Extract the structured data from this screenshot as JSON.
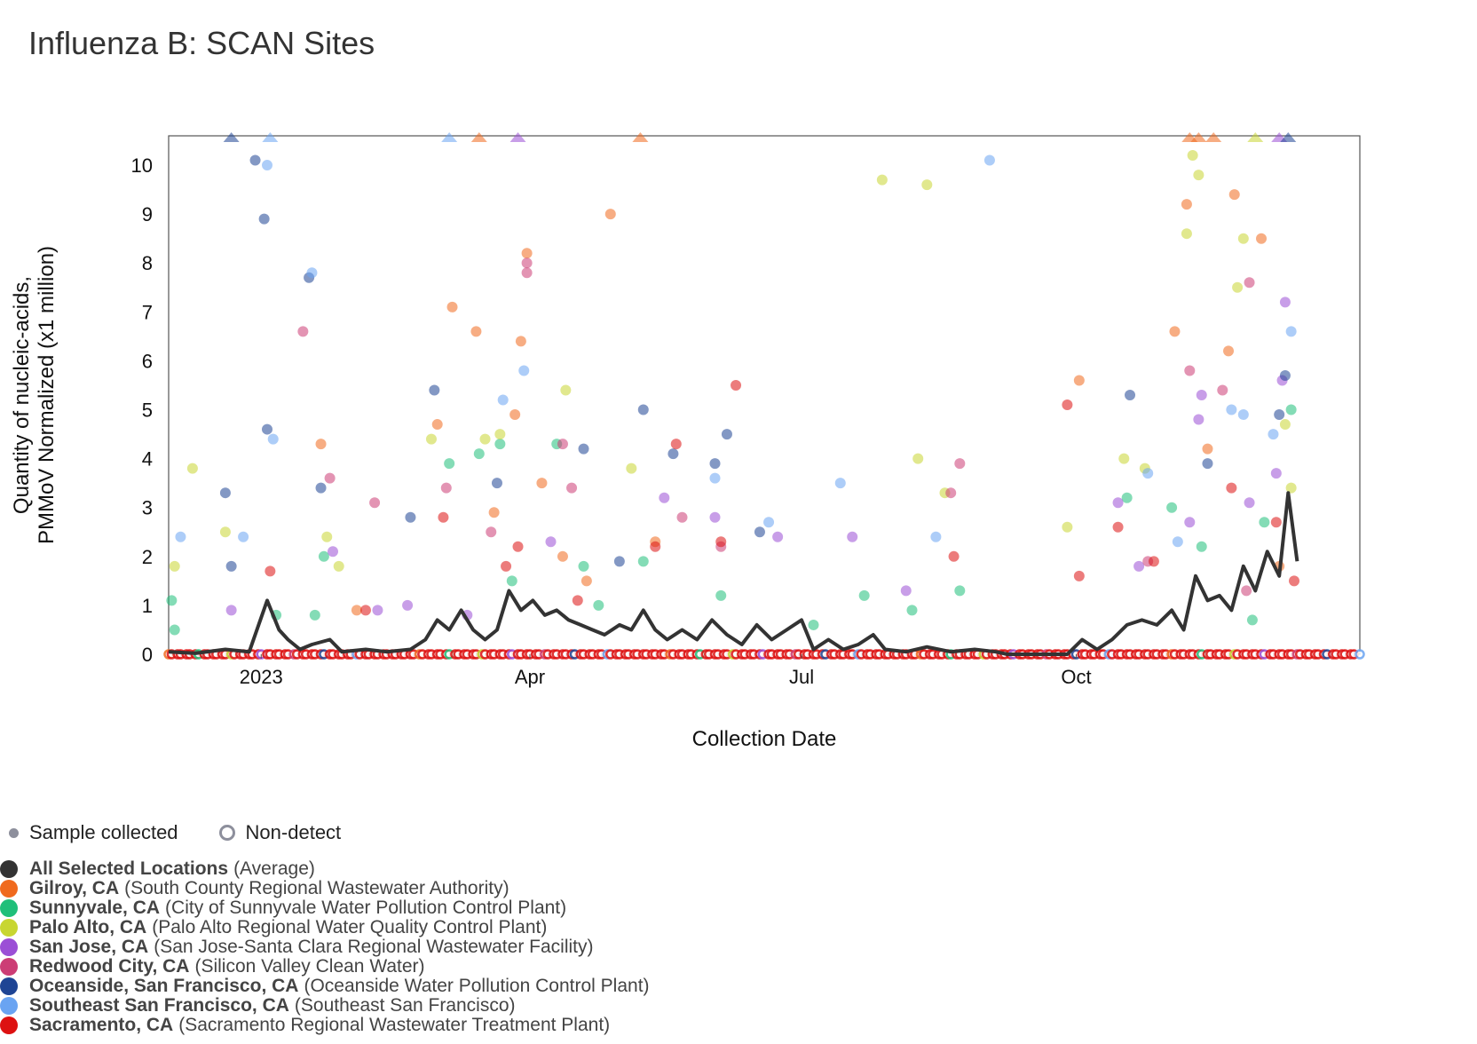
{
  "page": {
    "title": "Influenza B: SCAN Sites"
  },
  "legend": {
    "sample_label": "Sample collected",
    "nondetect_label": "Non-detect",
    "locations": [
      {
        "name": "All Selected Locations",
        "desc": "(Average)",
        "color": "#333333"
      },
      {
        "name": "Gilroy, CA",
        "desc": "(South County Regional Wastewater Authority)",
        "color": "#f06a1e"
      },
      {
        "name": "Sunnyvale, CA",
        "desc": "(City of Sunnyvale Water Pollution Control Plant)",
        "color": "#1fbf7a"
      },
      {
        "name": "Palo Alto, CA",
        "desc": "(Palo Alto Regional Water Quality Control Plant)",
        "color": "#c8d632"
      },
      {
        "name": "San Jose, CA",
        "desc": "(San Jose-Santa Clara Regional Wastewater Facility)",
        "color": "#9b4fd6"
      },
      {
        "name": "Redwood City, CA",
        "desc": "(Silicon Valley Clean Water)",
        "color": "#cc3d75"
      },
      {
        "name": "Oceanside, San Francisco, CA",
        "desc": "(Oceanside Water Pollution Control Plant)",
        "color": "#1e4494"
      },
      {
        "name": "Southeast San Francisco, CA",
        "desc": "(Southeast San Francisco)",
        "color": "#6aa4f2"
      },
      {
        "name": "Sacramento, CA",
        "desc": "(Sacramento Regional Wastewater Treatment Plant)",
        "color": "#dd1111"
      }
    ]
  },
  "chart_data": {
    "type": "scatter",
    "title": "Influenza B: SCAN Sites",
    "xlabel": "Collection Date",
    "ylabel": "Quantity of nucleic-acids, PMMoV Normalized (x1 million)",
    "x_range": [
      "2022-12-01",
      "2024-01-04"
    ],
    "ylim": [
      0,
      10.6
    ],
    "y_ticks": [
      0,
      1,
      2,
      3,
      4,
      5,
      6,
      7,
      8,
      9,
      10
    ],
    "x_ticks": [
      {
        "date": "2023-01-01",
        "label": "2023"
      },
      {
        "date": "2023-04-01",
        "label": "Apr"
      },
      {
        "date": "2023-07-01",
        "label": "Jul"
      },
      {
        "date": "2023-10-01",
        "label": "Oct"
      }
    ],
    "grid": false,
    "legend_position": "bottom-left",
    "average_line": {
      "name": "All Selected Locations",
      "points": [
        [
          "2022-12-01",
          0.05
        ],
        [
          "2022-12-10",
          0.02
        ],
        [
          "2022-12-20",
          0.1
        ],
        [
          "2022-12-28",
          0.05
        ],
        [
          "2023-01-03",
          1.1
        ],
        [
          "2023-01-07",
          0.5
        ],
        [
          "2023-01-10",
          0.3
        ],
        [
          "2023-01-14",
          0.1
        ],
        [
          "2023-01-18",
          0.2
        ],
        [
          "2023-01-24",
          0.3
        ],
        [
          "2023-01-28",
          0.05
        ],
        [
          "2023-02-05",
          0.1
        ],
        [
          "2023-02-12",
          0.05
        ],
        [
          "2023-02-20",
          0.1
        ],
        [
          "2023-02-25",
          0.3
        ],
        [
          "2023-03-01",
          0.7
        ],
        [
          "2023-03-05",
          0.5
        ],
        [
          "2023-03-09",
          0.9
        ],
        [
          "2023-03-13",
          0.5
        ],
        [
          "2023-03-17",
          0.3
        ],
        [
          "2023-03-21",
          0.5
        ],
        [
          "2023-03-25",
          1.3
        ],
        [
          "2023-03-29",
          0.9
        ],
        [
          "2023-04-02",
          1.1
        ],
        [
          "2023-04-06",
          0.8
        ],
        [
          "2023-04-10",
          0.9
        ],
        [
          "2023-04-14",
          0.7
        ],
        [
          "2023-04-18",
          0.6
        ],
        [
          "2023-04-22",
          0.5
        ],
        [
          "2023-04-26",
          0.4
        ],
        [
          "2023-05-01",
          0.6
        ],
        [
          "2023-05-05",
          0.5
        ],
        [
          "2023-05-09",
          0.9
        ],
        [
          "2023-05-13",
          0.5
        ],
        [
          "2023-05-17",
          0.3
        ],
        [
          "2023-05-22",
          0.5
        ],
        [
          "2023-05-27",
          0.3
        ],
        [
          "2023-06-01",
          0.7
        ],
        [
          "2023-06-06",
          0.4
        ],
        [
          "2023-06-11",
          0.2
        ],
        [
          "2023-06-16",
          0.6
        ],
        [
          "2023-06-21",
          0.3
        ],
        [
          "2023-06-26",
          0.5
        ],
        [
          "2023-07-01",
          0.7
        ],
        [
          "2023-07-05",
          0.1
        ],
        [
          "2023-07-10",
          0.3
        ],
        [
          "2023-07-15",
          0.1
        ],
        [
          "2023-07-20",
          0.2
        ],
        [
          "2023-07-25",
          0.4
        ],
        [
          "2023-07-29",
          0.1
        ],
        [
          "2023-08-05",
          0.05
        ],
        [
          "2023-08-12",
          0.15
        ],
        [
          "2023-08-20",
          0.05
        ],
        [
          "2023-08-28",
          0.1
        ],
        [
          "2023-09-04",
          0.05
        ],
        [
          "2023-09-08",
          0.0
        ],
        [
          "2023-09-28",
          0.0
        ],
        [
          "2023-10-03",
          0.3
        ],
        [
          "2023-10-08",
          0.1
        ],
        [
          "2023-10-13",
          0.3
        ],
        [
          "2023-10-18",
          0.6
        ],
        [
          "2023-10-23",
          0.7
        ],
        [
          "2023-10-28",
          0.6
        ],
        [
          "2023-11-02",
          0.9
        ],
        [
          "2023-11-06",
          0.5
        ],
        [
          "2023-11-10",
          1.6
        ],
        [
          "2023-11-14",
          1.1
        ],
        [
          "2023-11-18",
          1.2
        ],
        [
          "2023-11-22",
          0.9
        ],
        [
          "2023-11-26",
          1.8
        ],
        [
          "2023-11-30",
          1.3
        ],
        [
          "2023-12-04",
          2.1
        ],
        [
          "2023-12-08",
          1.6
        ],
        [
          "2023-12-11",
          3.3
        ],
        [
          "2023-12-14",
          1.9
        ]
      ]
    },
    "series": [
      {
        "name": "Gilroy, CA",
        "points": [
          [
            "2023-01-21",
            4.3
          ],
          [
            "2023-02-02",
            0.9
          ],
          [
            "2023-03-01",
            4.7
          ],
          [
            "2023-03-06",
            7.1
          ],
          [
            "2023-03-14",
            6.6
          ],
          [
            "2023-03-29",
            6.4
          ],
          [
            "2023-03-27",
            4.9
          ],
          [
            "2023-03-31",
            8.2
          ],
          [
            "2023-04-05",
            3.5
          ],
          [
            "2023-04-20",
            1.5
          ],
          [
            "2023-04-28",
            9.0
          ],
          [
            "2023-05-13",
            2.3
          ],
          [
            "2023-10-02",
            5.6
          ],
          [
            "2023-11-03",
            6.6
          ],
          [
            "2023-11-07",
            9.2
          ],
          [
            "2023-11-14",
            4.2
          ],
          [
            "2023-11-21",
            6.2
          ],
          [
            "2023-11-23",
            9.4
          ],
          [
            "2023-12-02",
            8.5
          ],
          [
            "2023-12-08",
            1.8
          ],
          [
            "2023-03-20",
            2.9
          ],
          [
            "2023-04-12",
            2.0
          ]
        ]
      },
      {
        "name": "Sunnyvale, CA",
        "points": [
          [
            "2022-12-02",
            1.1
          ],
          [
            "2022-12-03",
            0.5
          ],
          [
            "2023-01-06",
            0.8
          ],
          [
            "2023-01-19",
            0.8
          ],
          [
            "2023-01-22",
            2.0
          ],
          [
            "2023-03-05",
            3.9
          ],
          [
            "2023-03-15",
            4.1
          ],
          [
            "2023-03-22",
            4.3
          ],
          [
            "2023-04-10",
            4.3
          ],
          [
            "2023-04-19",
            1.8
          ],
          [
            "2023-05-09",
            1.9
          ],
          [
            "2023-06-04",
            1.2
          ],
          [
            "2023-07-05",
            0.6
          ],
          [
            "2023-07-22",
            1.2
          ],
          [
            "2023-08-07",
            0.9
          ],
          [
            "2023-08-23",
            1.3
          ],
          [
            "2023-10-18",
            3.2
          ],
          [
            "2023-11-02",
            3.0
          ],
          [
            "2023-11-12",
            2.2
          ],
          [
            "2023-12-03",
            2.7
          ],
          [
            "2023-12-12",
            5.0
          ],
          [
            "2023-11-29",
            0.7
          ],
          [
            "2023-03-26",
            1.5
          ],
          [
            "2023-04-24",
            1.0
          ]
        ]
      },
      {
        "name": "Palo Alto, CA",
        "points": [
          [
            "2022-12-03",
            1.8
          ],
          [
            "2022-12-09",
            3.8
          ],
          [
            "2022-12-20",
            2.5
          ],
          [
            "2023-01-23",
            2.4
          ],
          [
            "2023-01-27",
            1.8
          ],
          [
            "2023-02-27",
            4.4
          ],
          [
            "2023-03-17",
            4.4
          ],
          [
            "2023-03-22",
            4.5
          ],
          [
            "2023-04-13",
            5.4
          ],
          [
            "2023-05-05",
            3.8
          ],
          [
            "2023-07-28",
            9.7
          ],
          [
            "2023-08-12",
            9.6
          ],
          [
            "2023-08-09",
            4.0
          ],
          [
            "2023-08-18",
            3.3
          ],
          [
            "2023-09-28",
            2.6
          ],
          [
            "2023-10-17",
            4.0
          ],
          [
            "2023-10-24",
            3.8
          ],
          [
            "2023-11-09",
            10.2
          ],
          [
            "2023-11-07",
            8.6
          ],
          [
            "2023-11-11",
            9.8
          ],
          [
            "2023-11-26",
            8.5
          ],
          [
            "2023-11-24",
            7.5
          ],
          [
            "2023-12-10",
            4.7
          ],
          [
            "2023-12-12",
            3.4
          ]
        ]
      },
      {
        "name": "San Jose, CA",
        "points": [
          [
            "2022-12-22",
            0.9
          ],
          [
            "2023-01-25",
            2.1
          ],
          [
            "2023-02-09",
            0.9
          ],
          [
            "2023-02-19",
            1.0
          ],
          [
            "2023-03-11",
            0.8
          ],
          [
            "2023-04-08",
            2.3
          ],
          [
            "2023-05-16",
            3.2
          ],
          [
            "2023-06-02",
            2.8
          ],
          [
            "2023-06-23",
            2.4
          ],
          [
            "2023-07-18",
            2.4
          ],
          [
            "2023-08-05",
            1.3
          ],
          [
            "2023-10-15",
            3.1
          ],
          [
            "2023-10-22",
            1.8
          ],
          [
            "2023-11-08",
            2.7
          ],
          [
            "2023-11-12",
            5.3
          ],
          [
            "2023-11-11",
            4.8
          ],
          [
            "2023-12-10",
            7.2
          ],
          [
            "2023-12-09",
            5.6
          ],
          [
            "2023-12-07",
            3.7
          ],
          [
            "2023-11-28",
            3.1
          ]
        ]
      },
      {
        "name": "Redwood City, CA",
        "points": [
          [
            "2023-01-15",
            6.6
          ],
          [
            "2023-01-24",
            3.6
          ],
          [
            "2023-02-08",
            3.1
          ],
          [
            "2023-03-04",
            3.4
          ],
          [
            "2023-03-19",
            2.5
          ],
          [
            "2023-03-31",
            8.0
          ],
          [
            "2023-03-31",
            7.8
          ],
          [
            "2023-04-12",
            4.3
          ],
          [
            "2023-04-15",
            3.4
          ],
          [
            "2023-05-22",
            2.8
          ],
          [
            "2023-06-04",
            2.2
          ],
          [
            "2023-08-20",
            3.3
          ],
          [
            "2023-08-23",
            3.9
          ],
          [
            "2023-11-08",
            5.8
          ],
          [
            "2023-11-19",
            5.4
          ],
          [
            "2023-11-28",
            7.6
          ],
          [
            "2023-11-27",
            1.3
          ],
          [
            "2023-10-25",
            1.9
          ]
        ]
      },
      {
        "name": "Oceanside, San Francisco, CA",
        "points": [
          [
            "2022-12-20",
            3.3
          ],
          [
            "2022-12-22",
            1.8
          ],
          [
            "2022-12-30",
            10.1
          ],
          [
            "2023-01-02",
            8.9
          ],
          [
            "2023-01-03",
            4.6
          ],
          [
            "2023-01-17",
            7.7
          ],
          [
            "2023-01-21",
            3.4
          ],
          [
            "2023-02-28",
            5.4
          ],
          [
            "2023-03-21",
            3.5
          ],
          [
            "2023-04-19",
            4.2
          ],
          [
            "2023-05-09",
            5.0
          ],
          [
            "2023-05-19",
            4.1
          ],
          [
            "2023-06-02",
            3.9
          ],
          [
            "2023-06-06",
            4.5
          ],
          [
            "2023-06-17",
            2.5
          ],
          [
            "2023-10-19",
            5.3
          ],
          [
            "2023-11-14",
            3.9
          ],
          [
            "2023-12-10",
            5.7
          ],
          [
            "2023-12-08",
            4.9
          ],
          [
            "2023-02-20",
            2.8
          ],
          [
            "2023-05-01",
            1.9
          ]
        ]
      },
      {
        "name": "Southeast San Francisco, CA",
        "points": [
          [
            "2022-12-05",
            2.4
          ],
          [
            "2022-12-26",
            2.4
          ],
          [
            "2023-01-03",
            10.0
          ],
          [
            "2023-01-05",
            4.4
          ],
          [
            "2023-01-18",
            7.8
          ],
          [
            "2023-03-23",
            5.2
          ],
          [
            "2023-03-30",
            5.8
          ],
          [
            "2023-06-02",
            3.6
          ],
          [
            "2023-06-20",
            2.7
          ],
          [
            "2023-07-14",
            3.5
          ],
          [
            "2023-08-15",
            2.4
          ],
          [
            "2023-09-02",
            10.1
          ],
          [
            "2023-11-22",
            5.0
          ],
          [
            "2023-11-26",
            4.9
          ],
          [
            "2023-12-06",
            4.5
          ],
          [
            "2023-12-12",
            6.6
          ],
          [
            "2023-10-25",
            3.7
          ],
          [
            "2023-11-04",
            2.3
          ]
        ]
      },
      {
        "name": "Sacramento, CA",
        "points": [
          [
            "2023-01-04",
            1.7
          ],
          [
            "2023-02-05",
            0.9
          ],
          [
            "2023-03-03",
            2.8
          ],
          [
            "2023-03-24",
            1.8
          ],
          [
            "2023-03-28",
            2.2
          ],
          [
            "2023-05-13",
            2.2
          ],
          [
            "2023-05-20",
            4.3
          ],
          [
            "2023-06-04",
            2.3
          ],
          [
            "2023-06-09",
            5.5
          ],
          [
            "2023-08-21",
            2.0
          ],
          [
            "2023-09-28",
            5.1
          ],
          [
            "2023-10-02",
            1.6
          ],
          [
            "2023-10-15",
            2.6
          ],
          [
            "2023-10-27",
            1.9
          ],
          [
            "2023-11-22",
            3.4
          ],
          [
            "2023-12-07",
            2.7
          ],
          [
            "2023-12-13",
            1.5
          ],
          [
            "2023-04-17",
            1.1
          ]
        ]
      }
    ],
    "nondetect_range": [
      "2022-12-01",
      "2024-01-04"
    ],
    "offscale_markers": [
      {
        "date": "2022-12-22",
        "series": "Oceanside, San Francisco, CA"
      },
      {
        "date": "2023-01-04",
        "series": "Southeast San Francisco, CA"
      },
      {
        "date": "2023-03-05",
        "series": "Southeast San Francisco, CA"
      },
      {
        "date": "2023-03-15",
        "series": "Gilroy, CA"
      },
      {
        "date": "2023-03-28",
        "series": "San Jose, CA"
      },
      {
        "date": "2023-05-08",
        "series": "Gilroy, CA"
      },
      {
        "date": "2023-11-08",
        "series": "Gilroy, CA"
      },
      {
        "date": "2023-11-11",
        "series": "Gilroy, CA"
      },
      {
        "date": "2023-11-16",
        "series": "Gilroy, CA"
      },
      {
        "date": "2023-11-30",
        "series": "Palo Alto, CA"
      },
      {
        "date": "2023-12-08",
        "series": "San Jose, CA"
      },
      {
        "date": "2023-12-11",
        "series": "Oceanside, San Francisco, CA"
      }
    ]
  }
}
